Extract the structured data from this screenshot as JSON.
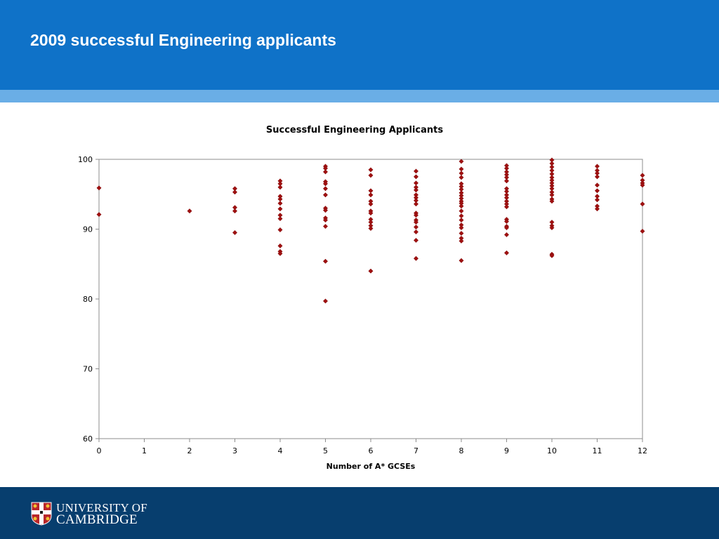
{
  "slide": {
    "title": "2009 successful Engineering applicants"
  },
  "footer": {
    "logo_line1": "UNIVERSITY OF",
    "logo_line2": "CAMBRIDGE"
  },
  "colors": {
    "header": "#0f72c8",
    "header_stripe": "#6aaee6",
    "footer": "#073e6e",
    "marker": "#a01010"
  },
  "chart_data": {
    "type": "scatter",
    "title": "Successful Engineering Applicants",
    "xlabel": "Number of A* GCSEs",
    "ylabel": "",
    "xlim": [
      0,
      12
    ],
    "ylim": [
      60,
      100
    ],
    "xticks": [
      0,
      1,
      2,
      3,
      4,
      5,
      6,
      7,
      8,
      9,
      10,
      11,
      12
    ],
    "yticks": [
      60,
      70,
      80,
      90,
      100
    ],
    "grid": false,
    "legend": "none",
    "marker": "diamond",
    "points": [
      [
        0,
        95.9
      ],
      [
        0,
        92.1
      ],
      [
        2,
        92.6
      ],
      [
        3,
        95.8
      ],
      [
        3,
        95.3
      ],
      [
        3,
        93.1
      ],
      [
        3,
        92.6
      ],
      [
        3,
        89.5
      ],
      [
        4,
        96.9
      ],
      [
        4,
        96.5
      ],
      [
        4,
        96.0
      ],
      [
        4,
        94.7
      ],
      [
        4,
        94.3
      ],
      [
        4,
        93.7
      ],
      [
        4,
        92.9
      ],
      [
        4,
        92.0
      ],
      [
        4,
        91.5
      ],
      [
        4,
        89.9
      ],
      [
        4,
        87.6
      ],
      [
        4,
        86.8
      ],
      [
        4,
        86.5
      ],
      [
        5,
        99.0
      ],
      [
        5,
        98.7
      ],
      [
        5,
        98.2
      ],
      [
        5,
        96.8
      ],
      [
        5,
        96.5
      ],
      [
        5,
        95.8
      ],
      [
        5,
        94.9
      ],
      [
        5,
        93.0
      ],
      [
        5,
        92.7
      ],
      [
        5,
        91.6
      ],
      [
        5,
        91.3
      ],
      [
        5,
        90.4
      ],
      [
        5,
        85.4
      ],
      [
        5,
        79.7
      ],
      [
        6,
        98.5
      ],
      [
        6,
        97.7
      ],
      [
        6,
        95.5
      ],
      [
        6,
        94.9
      ],
      [
        6,
        94.0
      ],
      [
        6,
        93.6
      ],
      [
        6,
        92.6
      ],
      [
        6,
        92.3
      ],
      [
        6,
        91.4
      ],
      [
        6,
        91.0
      ],
      [
        6,
        90.5
      ],
      [
        6,
        90.1
      ],
      [
        6,
        84.0
      ],
      [
        7,
        98.3
      ],
      [
        7,
        97.5
      ],
      [
        7,
        96.6
      ],
      [
        7,
        96.0
      ],
      [
        7,
        95.6
      ],
      [
        7,
        94.9
      ],
      [
        7,
        94.5
      ],
      [
        7,
        94.1
      ],
      [
        7,
        93.6
      ],
      [
        7,
        92.3
      ],
      [
        7,
        92.0
      ],
      [
        7,
        91.3
      ],
      [
        7,
        91.0
      ],
      [
        7,
        90.3
      ],
      [
        7,
        89.6
      ],
      [
        7,
        88.4
      ],
      [
        7,
        85.8
      ],
      [
        8,
        99.7
      ],
      [
        8,
        98.6
      ],
      [
        8,
        98.0
      ],
      [
        8,
        97.4
      ],
      [
        8,
        96.5
      ],
      [
        8,
        96.1
      ],
      [
        8,
        95.7
      ],
      [
        8,
        95.2
      ],
      [
        8,
        94.8
      ],
      [
        8,
        94.4
      ],
      [
        8,
        94.0
      ],
      [
        8,
        93.7
      ],
      [
        8,
        93.3
      ],
      [
        8,
        92.6
      ],
      [
        8,
        91.9
      ],
      [
        8,
        91.3
      ],
      [
        8,
        90.6
      ],
      [
        8,
        90.2
      ],
      [
        8,
        89.4
      ],
      [
        8,
        88.7
      ],
      [
        8,
        88.3
      ],
      [
        8,
        85.5
      ],
      [
        9,
        99.1
      ],
      [
        9,
        98.7
      ],
      [
        9,
        98.2
      ],
      [
        9,
        97.8
      ],
      [
        9,
        97.4
      ],
      [
        9,
        96.9
      ],
      [
        9,
        95.8
      ],
      [
        9,
        95.4
      ],
      [
        9,
        94.9
      ],
      [
        9,
        94.5
      ],
      [
        9,
        94.0
      ],
      [
        9,
        93.6
      ],
      [
        9,
        93.2
      ],
      [
        9,
        91.4
      ],
      [
        9,
        91.1
      ],
      [
        9,
        90.4
      ],
      [
        9,
        90.2
      ],
      [
        9,
        89.2
      ],
      [
        9,
        86.6
      ],
      [
        10,
        99.9
      ],
      [
        10,
        99.4
      ],
      [
        10,
        98.9
      ],
      [
        10,
        98.4
      ],
      [
        10,
        97.9
      ],
      [
        10,
        97.4
      ],
      [
        10,
        97.0
      ],
      [
        10,
        96.6
      ],
      [
        10,
        96.2
      ],
      [
        10,
        95.8
      ],
      [
        10,
        95.3
      ],
      [
        10,
        94.9
      ],
      [
        10,
        94.3
      ],
      [
        10,
        94.0
      ],
      [
        10,
        91.0
      ],
      [
        10,
        90.5
      ],
      [
        10,
        90.2
      ],
      [
        10,
        86.4
      ],
      [
        10,
        86.2
      ],
      [
        11,
        99.0
      ],
      [
        11,
        98.4
      ],
      [
        11,
        98.0
      ],
      [
        11,
        97.5
      ],
      [
        11,
        96.3
      ],
      [
        11,
        95.5
      ],
      [
        11,
        94.7
      ],
      [
        11,
        94.2
      ],
      [
        11,
        93.3
      ],
      [
        11,
        92.9
      ],
      [
        12,
        97.7
      ],
      [
        12,
        97.0
      ],
      [
        12,
        96.6
      ],
      [
        12,
        96.3
      ],
      [
        12,
        93.6
      ],
      [
        12,
        89.7
      ]
    ]
  }
}
